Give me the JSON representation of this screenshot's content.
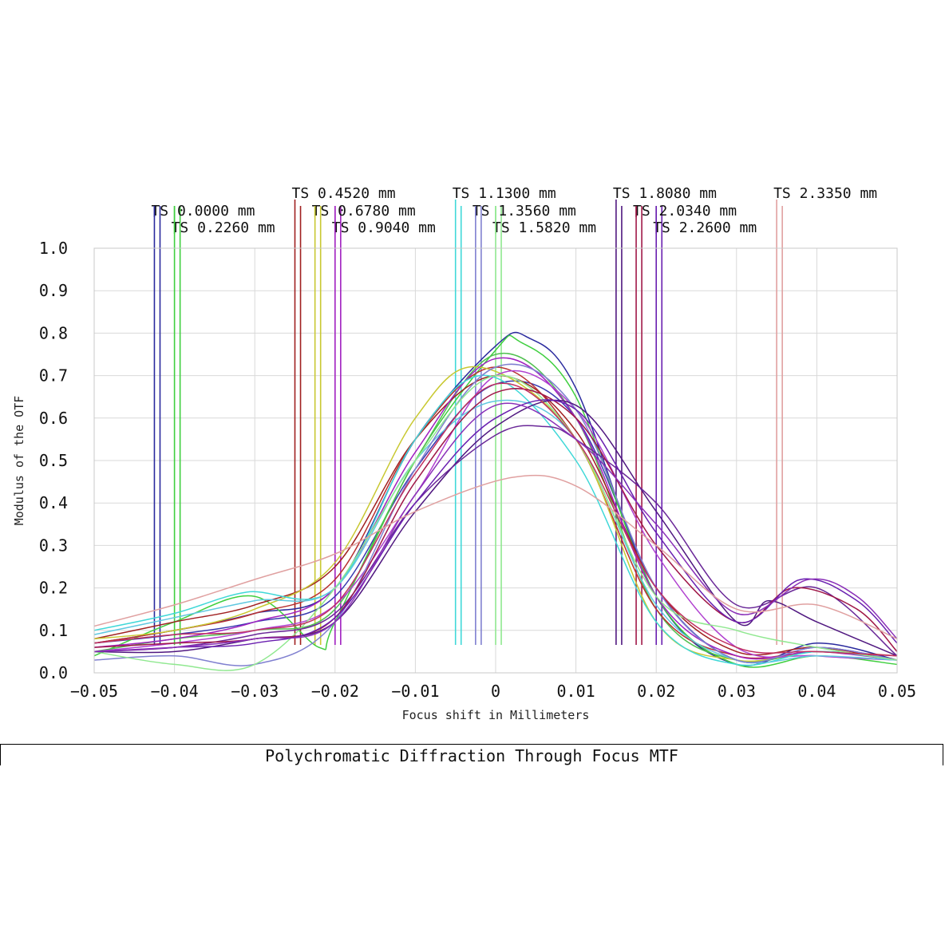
{
  "chart_data": {
    "type": "line",
    "title": "Polychromatic Diffraction Through Focus MTF",
    "xlabel": "Focus shift in Millimeters",
    "ylabel": "Modulus of the OTF",
    "xlim": [
      -0.05,
      0.05
    ],
    "ylim": [
      0,
      1.0
    ],
    "x_ticks": [
      "−0.05",
      "−0.04",
      "−0.03",
      "−0.02",
      "−0.01",
      "0",
      "0.01",
      "0.02",
      "0.03",
      "0.04",
      "0.05"
    ],
    "y_ticks": [
      "0.0",
      "0.1",
      "0.2",
      "0.3",
      "0.4",
      "0.5",
      "0.6",
      "0.7",
      "0.8",
      "0.9",
      "1.0"
    ],
    "grid": true,
    "legend_placement": "top",
    "legend": [
      {
        "label": "TS 0.0000 mm",
        "color": "#2a2a9e",
        "row": 2
      },
      {
        "label": "TS 0.2260 mm",
        "color": "#3fcf3f",
        "row": 3
      },
      {
        "label": "TS 0.4520 mm",
        "color": "#a02020",
        "row": 1
      },
      {
        "label": "TS 0.6780 mm",
        "color": "#c8c830",
        "row": 2
      },
      {
        "label": "TS 0.9040 mm",
        "color": "#a020c0",
        "row": 3
      },
      {
        "label": "TS 1.1300 mm",
        "color": "#40d8d8",
        "row": 1
      },
      {
        "label": "TS 1.3560 mm",
        "color": "#8080d0",
        "row": 2
      },
      {
        "label": "TS 1.5820 mm",
        "color": "#90e890",
        "row": 3
      },
      {
        "label": "TS 1.8080 mm",
        "color": "#501880",
        "row": 1
      },
      {
        "label": "TS 2.0340 mm",
        "color": "#a01848",
        "row": 2
      },
      {
        "label": "TS 2.2600 mm",
        "color": "#6a20b0",
        "row": 3
      },
      {
        "label": "TS 2.3350 mm",
        "color": "#e0a0a0",
        "row": 1
      }
    ],
    "markers": [
      {
        "x": -0.0425,
        "color": "#2a2a9e"
      },
      {
        "x": -0.0418,
        "color": "#2a2a9e"
      },
      {
        "x": -0.04,
        "color": "#3fcf3f"
      },
      {
        "x": -0.0393,
        "color": "#3fcf3f"
      },
      {
        "x": -0.025,
        "color": "#a02020"
      },
      {
        "x": -0.0243,
        "color": "#a02020"
      },
      {
        "x": -0.0225,
        "color": "#c8c830"
      },
      {
        "x": -0.0218,
        "color": "#c8c830"
      },
      {
        "x": -0.02,
        "color": "#a020c0"
      },
      {
        "x": -0.0193,
        "color": "#a020c0"
      },
      {
        "x": -0.005,
        "color": "#40d8d8"
      },
      {
        "x": -0.0043,
        "color": "#40d8d8"
      },
      {
        "x": -0.0025,
        "color": "#8080d0"
      },
      {
        "x": -0.0018,
        "color": "#8080d0"
      },
      {
        "x": 0.0,
        "color": "#90e890"
      },
      {
        "x": 0.0007,
        "color": "#90e890"
      },
      {
        "x": 0.015,
        "color": "#501880"
      },
      {
        "x": 0.0157,
        "color": "#501880"
      },
      {
        "x": 0.0175,
        "color": "#a01848"
      },
      {
        "x": 0.0182,
        "color": "#a01848"
      },
      {
        "x": 0.02,
        "color": "#6a20b0"
      },
      {
        "x": 0.0207,
        "color": "#6a20b0"
      },
      {
        "x": 0.035,
        "color": "#e0a0a0"
      },
      {
        "x": 0.0357,
        "color": "#e0a0a0"
      }
    ],
    "series": [
      {
        "color": "#2a2a9e",
        "x": [
          -0.05,
          -0.04,
          -0.03,
          -0.02,
          -0.01,
          0.0,
          0.004,
          0.01,
          0.02,
          0.03,
          0.04,
          0.05
        ],
        "y": [
          0.07,
          0.1,
          0.14,
          0.2,
          0.55,
          0.77,
          0.79,
          0.67,
          0.18,
          0.02,
          0.07,
          0.03
        ]
      },
      {
        "color": "#3a3ab0",
        "x": [
          -0.05,
          -0.04,
          -0.03,
          -0.02,
          -0.01,
          0.0,
          0.01,
          0.02,
          0.03,
          0.04,
          0.05
        ],
        "y": [
          0.07,
          0.09,
          0.12,
          0.18,
          0.48,
          0.68,
          0.6,
          0.2,
          0.03,
          0.06,
          0.03
        ]
      },
      {
        "color": "#3fcf3f",
        "x": [
          -0.05,
          -0.04,
          -0.03,
          -0.022,
          -0.02,
          -0.01,
          0.0,
          0.003,
          0.01,
          0.02,
          0.03,
          0.04,
          0.05
        ],
        "y": [
          0.04,
          0.12,
          0.18,
          0.06,
          0.12,
          0.5,
          0.76,
          0.78,
          0.65,
          0.18,
          0.02,
          0.04,
          0.02
        ]
      },
      {
        "color": "#50c050",
        "x": [
          -0.05,
          -0.04,
          -0.03,
          -0.02,
          -0.01,
          0.0,
          0.01,
          0.02,
          0.03,
          0.04,
          0.05
        ],
        "y": [
          0.05,
          0.08,
          0.1,
          0.15,
          0.5,
          0.75,
          0.6,
          0.15,
          0.03,
          0.05,
          0.03
        ]
      },
      {
        "color": "#a02020",
        "x": [
          -0.05,
          -0.04,
          -0.03,
          -0.02,
          -0.01,
          0.0,
          0.01,
          0.02,
          0.03,
          0.04,
          0.05
        ],
        "y": [
          0.08,
          0.12,
          0.16,
          0.25,
          0.55,
          0.7,
          0.57,
          0.2,
          0.05,
          0.06,
          0.03
        ]
      },
      {
        "color": "#b83030",
        "x": [
          -0.05,
          -0.04,
          -0.03,
          -0.02,
          -0.01,
          0.0,
          0.01,
          0.02,
          0.03,
          0.04,
          0.05
        ],
        "y": [
          0.07,
          0.1,
          0.14,
          0.22,
          0.55,
          0.72,
          0.55,
          0.15,
          0.04,
          0.05,
          0.04
        ]
      },
      {
        "color": "#c8c830",
        "x": [
          -0.05,
          -0.04,
          -0.03,
          -0.02,
          -0.01,
          -0.002,
          0.01,
          0.02,
          0.03,
          0.04,
          0.05
        ],
        "y": [
          0.08,
          0.1,
          0.15,
          0.26,
          0.6,
          0.72,
          0.55,
          0.12,
          0.03,
          0.05,
          0.03
        ]
      },
      {
        "color": "#a020c0",
        "x": [
          -0.05,
          -0.04,
          -0.03,
          -0.02,
          -0.01,
          0.0,
          0.01,
          0.02,
          0.03,
          0.04,
          0.05
        ],
        "y": [
          0.06,
          0.08,
          0.12,
          0.2,
          0.52,
          0.74,
          0.6,
          0.18,
          0.04,
          0.05,
          0.03
        ]
      },
      {
        "color": "#b040d0",
        "x": [
          -0.05,
          -0.04,
          -0.03,
          -0.02,
          -0.01,
          0.0,
          0.01,
          0.02,
          0.03,
          0.04,
          0.05
        ],
        "y": [
          0.05,
          0.07,
          0.1,
          0.16,
          0.42,
          0.7,
          0.62,
          0.28,
          0.06,
          0.04,
          0.03
        ]
      },
      {
        "color": "#40d8d8",
        "x": [
          -0.05,
          -0.04,
          -0.031,
          -0.02,
          -0.01,
          -0.001,
          0.01,
          0.02,
          0.03,
          0.04,
          0.05
        ],
        "y": [
          0.1,
          0.14,
          0.19,
          0.2,
          0.55,
          0.7,
          0.5,
          0.12,
          0.02,
          0.05,
          0.03
        ]
      },
      {
        "color": "#60c8e0",
        "x": [
          -0.05,
          -0.04,
          -0.03,
          -0.02,
          -0.01,
          0.0,
          0.01,
          0.02,
          0.03,
          0.04,
          0.05
        ],
        "y": [
          0.09,
          0.13,
          0.17,
          0.2,
          0.5,
          0.64,
          0.55,
          0.16,
          0.03,
          0.04,
          0.03
        ]
      },
      {
        "color": "#8080d0",
        "x": [
          -0.05,
          -0.04,
          -0.03,
          -0.02,
          -0.01,
          0.0,
          0.01,
          0.02,
          0.03,
          0.04,
          0.05
        ],
        "y": [
          0.03,
          0.04,
          0.02,
          0.12,
          0.48,
          0.72,
          0.62,
          0.2,
          0.03,
          0.06,
          0.03
        ]
      },
      {
        "color": "#90e890",
        "x": [
          -0.05,
          -0.04,
          -0.03,
          -0.02,
          -0.01,
          0.0,
          0.01,
          0.02,
          0.03,
          0.04,
          0.05
        ],
        "y": [
          0.05,
          0.02,
          0.02,
          0.2,
          0.5,
          0.7,
          0.55,
          0.18,
          0.1,
          0.06,
          0.03
        ]
      },
      {
        "color": "#501880",
        "x": [
          -0.05,
          -0.04,
          -0.03,
          -0.02,
          -0.01,
          0.0,
          0.01,
          0.02,
          0.03,
          0.034,
          0.04,
          0.05
        ],
        "y": [
          0.05,
          0.05,
          0.08,
          0.12,
          0.38,
          0.58,
          0.63,
          0.38,
          0.12,
          0.17,
          0.12,
          0.04
        ]
      },
      {
        "color": "#6a2898",
        "x": [
          -0.05,
          -0.04,
          -0.03,
          -0.02,
          -0.01,
          0.0,
          0.006,
          0.01,
          0.02,
          0.03,
          0.04,
          0.05
        ],
        "y": [
          0.05,
          0.06,
          0.09,
          0.14,
          0.4,
          0.56,
          0.58,
          0.55,
          0.4,
          0.16,
          0.2,
          0.04
        ]
      },
      {
        "color": "#a01848",
        "x": [
          -0.05,
          -0.04,
          -0.03,
          -0.02,
          -0.01,
          0.0,
          0.01,
          0.02,
          0.03,
          0.037,
          0.045,
          0.05
        ],
        "y": [
          0.06,
          0.07,
          0.08,
          0.13,
          0.45,
          0.66,
          0.6,
          0.3,
          0.12,
          0.2,
          0.15,
          0.05
        ]
      },
      {
        "color": "#c03060",
        "x": [
          -0.05,
          -0.04,
          -0.03,
          -0.02,
          -0.01,
          0.0,
          0.01,
          0.02,
          0.03,
          0.04,
          0.05
        ],
        "y": [
          0.07,
          0.09,
          0.1,
          0.16,
          0.47,
          0.68,
          0.55,
          0.2,
          0.06,
          0.05,
          0.04
        ]
      },
      {
        "color": "#6a20b0",
        "x": [
          -0.05,
          -0.04,
          -0.03,
          -0.02,
          -0.01,
          0.0,
          0.01,
          0.02,
          0.03,
          0.038,
          0.045,
          0.05
        ],
        "y": [
          0.05,
          0.06,
          0.07,
          0.13,
          0.4,
          0.6,
          0.62,
          0.33,
          0.12,
          0.22,
          0.17,
          0.07
        ]
      },
      {
        "color": "#8a30b8",
        "x": [
          -0.05,
          -0.04,
          -0.03,
          -0.02,
          -0.01,
          0.0,
          0.01,
          0.02,
          0.03,
          0.039,
          0.045,
          0.05
        ],
        "y": [
          0.05,
          0.06,
          0.08,
          0.12,
          0.42,
          0.63,
          0.55,
          0.35,
          0.14,
          0.22,
          0.18,
          0.08
        ]
      },
      {
        "color": "#e0a0a0",
        "x": [
          -0.05,
          -0.04,
          -0.03,
          -0.02,
          -0.01,
          0.002,
          0.01,
          0.02,
          0.03,
          0.04,
          0.05
        ],
        "y": [
          0.11,
          0.16,
          0.22,
          0.28,
          0.38,
          0.46,
          0.44,
          0.3,
          0.15,
          0.16,
          0.08
        ]
      }
    ]
  }
}
